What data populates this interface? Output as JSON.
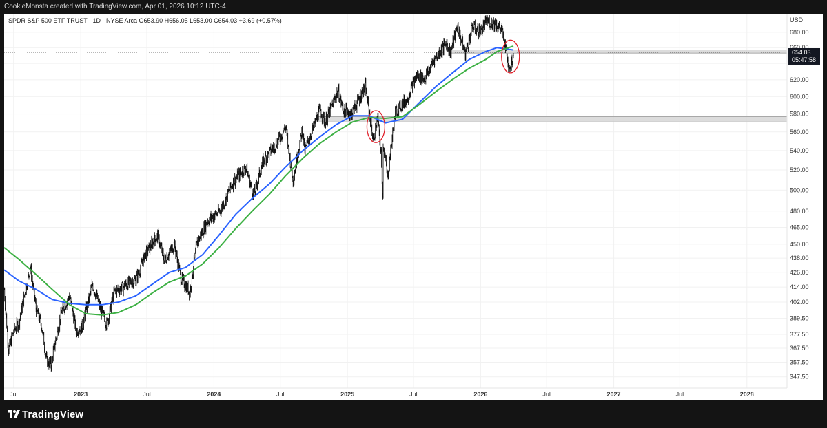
{
  "header": {
    "attribution": "CookieMonsta created with TradingView.com, Apr 01, 2026 10:12 UTC-4"
  },
  "legend": {
    "symbol_line": "SPDR S&P 500 ETF TRUST · 1D · NYSE Arca  O653.90  H656.05  L653.00  C654.03  +3.69 (+0.57%)"
  },
  "price_axis": {
    "currency": "USD",
    "last_price": "654.03",
    "countdown": "05:47:58"
  },
  "footer": {
    "brand": "TradingView"
  },
  "colors": {
    "sma_blue": "#2962ff",
    "sma_green": "#3cb043",
    "highlight_circle": "#e0202a",
    "zone_fill": "#d6d6d6"
  },
  "chart_data": {
    "type": "line",
    "title": "SPDR S&P 500 ETF TRUST · 1D · NYSE Arca",
    "scale": "log",
    "ylim": [
      340,
      705
    ],
    "y_ticks": [
      347.5,
      357.5,
      367.5,
      377.5,
      389.5,
      402,
      414,
      426,
      438,
      450,
      465,
      480,
      500,
      520,
      540,
      560,
      580,
      600,
      620,
      640,
      660,
      680
    ],
    "y_tick_labels": [
      "347.50",
      "357.50",
      "367.50",
      "377.50",
      "389.50",
      "402.00",
      "414.00",
      "426.00",
      "438.00",
      "450.00",
      "465.00",
      "480.00",
      "500.00",
      "520.00",
      "540.00",
      "560.00",
      "580.00",
      "600.00",
      "620.00",
      "640.00",
      "660.00",
      "680.00"
    ],
    "xlim": [
      "2022-06-05",
      "2028-04-20"
    ],
    "x_ticks": [
      {
        "label": "Jul",
        "date": "2022-07-01",
        "year": false
      },
      {
        "label": "2023",
        "date": "2023-01-01",
        "year": true
      },
      {
        "label": "Jul",
        "date": "2023-07-01",
        "year": false
      },
      {
        "label": "2024",
        "date": "2024-01-01",
        "year": true
      },
      {
        "label": "Jul",
        "date": "2024-07-01",
        "year": false
      },
      {
        "label": "2025",
        "date": "2025-01-01",
        "year": true
      },
      {
        "label": "Jul",
        "date": "2025-07-01",
        "year": false
      },
      {
        "label": "2026",
        "date": "2026-01-01",
        "year": true
      },
      {
        "label": "Jul",
        "date": "2026-07-01",
        "year": false
      },
      {
        "label": "2027",
        "date": "2027-01-01",
        "year": true
      },
      {
        "label": "Jul",
        "date": "2027-07-01",
        "year": false
      },
      {
        "label": "2028",
        "date": "2028-01-01",
        "year": true
      }
    ],
    "price_points": [
      [
        "2022-06-05",
        412
      ],
      [
        "2022-06-17",
        366
      ],
      [
        "2022-07-01",
        380
      ],
      [
        "2022-07-15",
        386
      ],
      [
        "2022-08-16",
        430
      ],
      [
        "2022-09-01",
        396
      ],
      [
        "2022-09-15",
        385
      ],
      [
        "2022-09-30",
        358
      ],
      [
        "2022-10-12",
        356
      ],
      [
        "2022-10-20",
        368
      ],
      [
        "2022-11-10",
        395
      ],
      [
        "2022-12-01",
        407
      ],
      [
        "2022-12-20",
        380
      ],
      [
        "2023-01-05",
        383
      ],
      [
        "2023-02-02",
        416
      ],
      [
        "2023-02-24",
        397
      ],
      [
        "2023-03-13",
        385
      ],
      [
        "2023-04-03",
        410
      ],
      [
        "2023-05-01",
        415
      ],
      [
        "2023-06-01",
        420
      ],
      [
        "2023-06-30",
        443
      ],
      [
        "2023-07-31",
        458
      ],
      [
        "2023-08-18",
        436
      ],
      [
        "2023-09-14",
        450
      ],
      [
        "2023-10-03",
        421
      ],
      [
        "2023-10-27",
        410
      ],
      [
        "2023-11-15",
        450
      ],
      [
        "2023-12-14",
        471
      ],
      [
        "2024-01-18",
        480
      ],
      [
        "2024-02-23",
        508
      ],
      [
        "2024-03-28",
        523
      ],
      [
        "2024-04-19",
        495
      ],
      [
        "2024-05-15",
        529
      ],
      [
        "2024-06-20",
        548
      ],
      [
        "2024-07-16",
        565
      ],
      [
        "2024-07-24",
        540
      ],
      [
        "2024-08-05",
        510
      ],
      [
        "2024-08-30",
        563
      ],
      [
        "2024-09-06",
        540
      ],
      [
        "2024-10-18",
        585
      ],
      [
        "2024-11-01",
        570
      ],
      [
        "2024-12-06",
        607
      ],
      [
        "2024-12-20",
        585
      ],
      [
        "2025-01-13",
        581
      ],
      [
        "2025-02-19",
        612
      ],
      [
        "2025-03-13",
        551
      ],
      [
        "2025-03-25",
        575
      ],
      [
        "2025-04-03",
        536
      ],
      [
        "2025-04-08",
        493
      ],
      [
        "2025-04-09",
        548
      ],
      [
        "2025-04-21",
        513
      ],
      [
        "2025-05-12",
        582
      ],
      [
        "2025-06-13",
        597
      ],
      [
        "2025-07-10",
        625
      ],
      [
        "2025-08-01",
        621
      ],
      [
        "2025-08-28",
        646
      ],
      [
        "2025-09-30",
        666
      ],
      [
        "2025-10-10",
        653
      ],
      [
        "2025-10-29",
        688
      ],
      [
        "2025-11-20",
        653
      ],
      [
        "2025-12-10",
        687
      ],
      [
        "2025-12-31",
        681
      ],
      [
        "2026-01-20",
        695
      ],
      [
        "2026-02-10",
        692
      ],
      [
        "2026-02-27",
        684
      ],
      [
        "2026-03-06",
        670
      ],
      [
        "2026-03-11",
        662
      ],
      [
        "2026-03-17",
        640
      ],
      [
        "2026-03-24",
        636
      ],
      [
        "2026-03-31",
        650
      ],
      [
        "2026-04-01",
        654.03
      ]
    ],
    "series": [
      {
        "name": "",
        "color": "#2962ff",
        "values": [
          [
            "2022-06-05",
            428
          ],
          [
            "2022-07-15",
            419
          ],
          [
            "2022-09-01",
            412
          ],
          [
            "2022-10-15",
            404
          ],
          [
            "2022-12-01",
            401
          ],
          [
            "2023-01-15",
            400
          ],
          [
            "2023-03-01",
            400
          ],
          [
            "2023-04-15",
            402
          ],
          [
            "2023-06-01",
            407
          ],
          [
            "2023-07-15",
            416
          ],
          [
            "2023-09-01",
            426
          ],
          [
            "2023-10-15",
            430
          ],
          [
            "2023-12-01",
            441
          ],
          [
            "2024-01-15",
            458
          ],
          [
            "2024-03-01",
            477
          ],
          [
            "2024-04-15",
            492
          ],
          [
            "2024-06-01",
            506
          ],
          [
            "2024-07-15",
            523
          ],
          [
            "2024-09-01",
            540
          ],
          [
            "2024-10-15",
            554
          ],
          [
            "2024-12-01",
            568
          ],
          [
            "2025-01-15",
            578
          ],
          [
            "2025-03-01",
            578
          ],
          [
            "2025-04-15",
            570
          ],
          [
            "2025-06-01",
            574
          ],
          [
            "2025-07-15",
            592
          ],
          [
            "2025-09-01",
            612
          ],
          [
            "2025-10-15",
            628
          ],
          [
            "2025-12-01",
            645
          ],
          [
            "2026-01-15",
            655
          ],
          [
            "2026-02-15",
            660
          ],
          [
            "2026-04-01",
            657
          ]
        ]
      },
      {
        "name": "",
        "color": "#3cb043",
        "values": [
          [
            "2022-06-05",
            447
          ],
          [
            "2022-07-15",
            437
          ],
          [
            "2022-09-01",
            424
          ],
          [
            "2022-10-15",
            412
          ],
          [
            "2022-12-01",
            400
          ],
          [
            "2023-01-15",
            393
          ],
          [
            "2023-03-01",
            392
          ],
          [
            "2023-04-15",
            394
          ],
          [
            "2023-06-01",
            400
          ],
          [
            "2023-07-15",
            409
          ],
          [
            "2023-09-01",
            418
          ],
          [
            "2023-10-15",
            423
          ],
          [
            "2023-12-01",
            433
          ],
          [
            "2024-01-15",
            447
          ],
          [
            "2024-03-01",
            464
          ],
          [
            "2024-04-15",
            480
          ],
          [
            "2024-06-01",
            496
          ],
          [
            "2024-07-15",
            514
          ],
          [
            "2024-09-01",
            532
          ],
          [
            "2024-10-15",
            547
          ],
          [
            "2024-12-01",
            560
          ],
          [
            "2025-01-15",
            571
          ],
          [
            "2025-03-01",
            576
          ],
          [
            "2025-04-15",
            575
          ],
          [
            "2025-06-01",
            577
          ],
          [
            "2025-07-15",
            590
          ],
          [
            "2025-09-01",
            606
          ],
          [
            "2025-10-15",
            620
          ],
          [
            "2025-12-01",
            634
          ],
          [
            "2026-01-15",
            645
          ],
          [
            "2026-02-15",
            655
          ],
          [
            "2026-04-01",
            662
          ]
        ]
      }
    ],
    "zones": [
      {
        "from": "2024-10-10",
        "to": "2028-04-20",
        "low": 571,
        "high": 577
      },
      {
        "from": "2025-10-10",
        "to": "2028-04-20",
        "low": 653,
        "high": 657
      }
    ],
    "highlights": [
      {
        "date": "2025-03-20",
        "low": 550,
        "high": 582
      },
      {
        "date": "2026-03-24",
        "low": 630,
        "high": 668
      }
    ],
    "last_price": 654.03
  }
}
